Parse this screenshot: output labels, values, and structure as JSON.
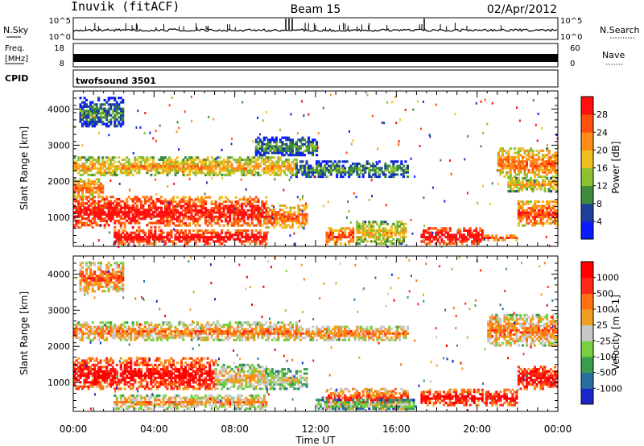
{
  "header": {
    "station": "Inuvik (fitACF)",
    "beam": "Beam 15",
    "date": "02/Apr/2012"
  },
  "top_panels": {
    "nsky_label": "N.Sky",
    "nsky_ticks": [
      "10^5",
      "10^0"
    ],
    "nsearch_label": "N.Search",
    "nsearch_ticks": [
      "10^5",
      "10^0"
    ],
    "freq_label": "Freq.",
    "freq_unit": "[MHz]",
    "freq_ticks": [
      "18",
      "8"
    ],
    "nave_label": "Nave",
    "nave_ticks": [
      "60",
      "0"
    ],
    "cpid_label": "CPID",
    "cpid_value": "twofsound 3501"
  },
  "chart_data": [
    {
      "type": "heatmap",
      "name": "power",
      "ylabel": "Slant Range [km]",
      "ylim": [
        200,
        4500
      ],
      "y_ticks": [
        1000,
        2000,
        3000,
        4000
      ],
      "y_tick_labels": [
        "1000",
        "2000",
        "3000",
        "4000"
      ],
      "xlim": [
        0,
        24
      ],
      "colorbar": {
        "label": "Power [dB]",
        "ticks": [
          "4",
          "8",
          "12",
          "16",
          "20",
          "24",
          "28"
        ],
        "colors": [
          "#0a1cff",
          "#1c3f9c",
          "#3c8c3c",
          "#8cc030",
          "#f0c020",
          "#ff8c18",
          "#ff5010",
          "#ff1010"
        ]
      },
      "scatter_bands": [
        {
          "t0": 0.0,
          "t1": 4.5,
          "r0": 700,
          "r1": 1600,
          "level": 0.85
        },
        {
          "t0": 4.5,
          "t1": 9.5,
          "r0": 750,
          "r1": 1550,
          "level": 0.8
        },
        {
          "t0": 9.5,
          "t1": 11.5,
          "r0": 700,
          "r1": 1350,
          "level": 0.65
        },
        {
          "t0": 0.0,
          "t1": 1.5,
          "r0": 1550,
          "r1": 2050,
          "level": 0.6
        },
        {
          "t0": 0.0,
          "t1": 11.0,
          "r0": 2150,
          "r1": 2650,
          "level": 0.5
        },
        {
          "t0": 11.0,
          "t1": 16.5,
          "r0": 2100,
          "r1": 2550,
          "level": 0.2
        },
        {
          "t0": 2.0,
          "t1": 9.5,
          "r0": 250,
          "r1": 650,
          "level": 0.85
        },
        {
          "t0": 12.5,
          "t1": 13.8,
          "r0": 250,
          "r1": 700,
          "level": 0.7
        },
        {
          "t0": 14.0,
          "t1": 16.5,
          "r0": 250,
          "r1": 900,
          "level": 0.45
        },
        {
          "t0": 17.2,
          "t1": 20.3,
          "r0": 250,
          "r1": 700,
          "level": 0.9
        },
        {
          "t0": 20.3,
          "t1": 22.0,
          "r0": 350,
          "r1": 500,
          "level": 0.7
        },
        {
          "t0": 21.0,
          "t1": 24.0,
          "r0": 2100,
          "r1": 2900,
          "level": 0.6
        },
        {
          "t0": 21.5,
          "t1": 24.0,
          "r0": 1700,
          "r1": 2100,
          "level": 0.45
        },
        {
          "t0": 22.0,
          "t1": 24.0,
          "r0": 750,
          "r1": 1450,
          "level": 0.7
        },
        {
          "t0": 0.3,
          "t1": 2.5,
          "r0": 3500,
          "r1": 4300,
          "level": 0.15
        },
        {
          "t0": 9.0,
          "t1": 12.0,
          "r0": 2700,
          "r1": 3200,
          "level": 0.2
        }
      ]
    },
    {
      "type": "heatmap",
      "name": "velocity",
      "ylabel": "Slant Range [km]",
      "ylim": [
        200,
        4500
      ],
      "y_ticks": [
        1000,
        2000,
        3000,
        4000
      ],
      "y_tick_labels": [
        "1000",
        "2000",
        "3000",
        "4000"
      ],
      "xlim": [
        0,
        24
      ],
      "colorbar": {
        "label": "Velocity [m s-1]",
        "ticks": [
          "1000",
          "500",
          "100",
          "25",
          "-25",
          "-100",
          "-500",
          "-1000"
        ],
        "colors": [
          "#1a28c8",
          "#2870a0",
          "#3c9c50",
          "#78d040",
          "#c8c8c8",
          "#f0a020",
          "#ff7010",
          "#ff2818",
          "#ff0000"
        ]
      },
      "scatter_bands": [
        {
          "t0": 0.0,
          "t1": 7.0,
          "r0": 800,
          "r1": 1650,
          "level": 0.82
        },
        {
          "t0": 7.0,
          "t1": 9.5,
          "r0": 800,
          "r1": 1500,
          "level": 0.45
        },
        {
          "t0": 9.5,
          "t1": 11.5,
          "r0": 800,
          "r1": 1350,
          "level": 0.35
        },
        {
          "t0": 0.0,
          "t1": 11.0,
          "r0": 2150,
          "r1": 2650,
          "level": 0.55
        },
        {
          "t0": 11.0,
          "t1": 16.5,
          "r0": 2150,
          "r1": 2550,
          "level": 0.55
        },
        {
          "t0": 20.5,
          "t1": 24.0,
          "r0": 2000,
          "r1": 2900,
          "level": 0.55
        },
        {
          "t0": 2.0,
          "t1": 9.5,
          "r0": 250,
          "r1": 650,
          "level": 0.5
        },
        {
          "t0": 12.5,
          "t1": 16.5,
          "r0": 250,
          "r1": 800,
          "level": 0.7
        },
        {
          "t0": 17.2,
          "t1": 22.0,
          "r0": 350,
          "r1": 800,
          "level": 0.8
        },
        {
          "t0": 22.0,
          "t1": 24.0,
          "r0": 800,
          "r1": 1450,
          "level": 0.82
        },
        {
          "t0": 0.3,
          "t1": 2.5,
          "r0": 3500,
          "r1": 4300,
          "level": 0.6
        },
        {
          "t0": 12.0,
          "t1": 17.0,
          "r0": 250,
          "r1": 500,
          "level": 0.3
        }
      ]
    }
  ],
  "x_axis": {
    "label": "Time UT",
    "ticks": [
      0,
      4,
      8,
      12,
      16,
      20,
      24
    ],
    "tick_labels": [
      "00:00",
      "04:00",
      "08:00",
      "12:00",
      "16:00",
      "20:00",
      "00:00"
    ]
  }
}
